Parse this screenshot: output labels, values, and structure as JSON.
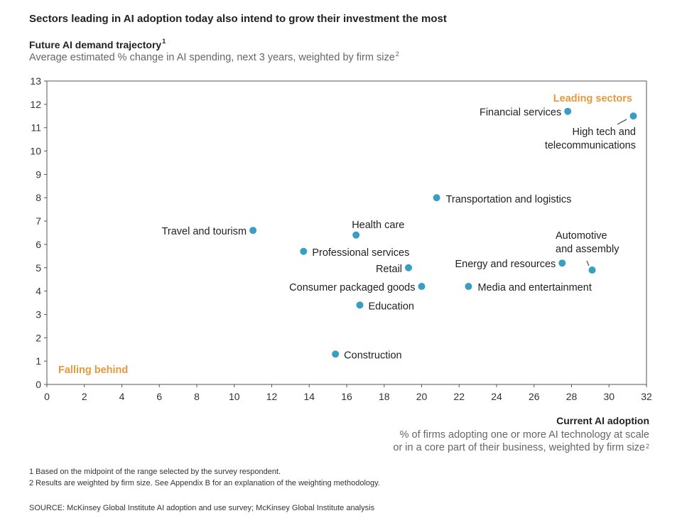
{
  "title": "Sectors leading in AI adoption today also intend to grow their investment the most",
  "y_axis": {
    "title": "Future AI demand trajectory",
    "title_sup": "1",
    "subtitle": "Average estimated % change in AI spending, next 3 years, weighted by firm size",
    "subtitle_sup": "2"
  },
  "x_axis": {
    "title": "Current AI adoption",
    "subtitle_line1": "% of firms adopting one or more AI technology at scale",
    "subtitle_line2": "or in a core part of their business, weighted by firm size",
    "subtitle_sup": "2"
  },
  "footnotes": {
    "note1": "1  Based on the midpoint of the range selected by the survey respondent.",
    "note2": "2  Results are weighted by firm size. See Appendix B for an explanation of the weighting methodology.",
    "source": "SOURCE:  McKinsey Global Institute AI adoption and use survey; McKinsey Global Institute analysis"
  },
  "chart_data": {
    "type": "scatter",
    "title": "Sectors leading in AI adoption today also intend to grow their investment the most",
    "xlabel": "Current AI adoption",
    "ylabel": "Future AI demand trajectory",
    "xlim": [
      0,
      32
    ],
    "ylim": [
      0,
      13
    ],
    "x_ticks": [
      0,
      2,
      4,
      6,
      8,
      10,
      12,
      14,
      16,
      18,
      20,
      22,
      24,
      26,
      28,
      30,
      32
    ],
    "y_ticks": [
      0,
      1,
      2,
      3,
      4,
      5,
      6,
      7,
      8,
      9,
      10,
      11,
      12,
      13
    ],
    "grid": false,
    "marker_color": "#3a9ec2",
    "annotation_color": "#e39a3b",
    "annotations": [
      {
        "text": "Leading sectors",
        "position": "top-right"
      },
      {
        "text": "Falling behind",
        "position": "bottom-left"
      }
    ],
    "points": [
      {
        "name": "Financial services",
        "x": 27.8,
        "y": 11.7
      },
      {
        "name": "High tech and telecommunications",
        "x": 31.3,
        "y": 11.5
      },
      {
        "name": "Transportation and logistics",
        "x": 20.8,
        "y": 8.0
      },
      {
        "name": "Travel and tourism",
        "x": 11.0,
        "y": 6.6
      },
      {
        "name": "Health care",
        "x": 16.5,
        "y": 6.4
      },
      {
        "name": "Professional services",
        "x": 13.7,
        "y": 5.7
      },
      {
        "name": "Automotive and assembly",
        "x": 29.1,
        "y": 4.9
      },
      {
        "name": "Energy and resources",
        "x": 27.5,
        "y": 5.2
      },
      {
        "name": "Retail",
        "x": 19.3,
        "y": 5.0
      },
      {
        "name": "Consumer packaged goods",
        "x": 20.0,
        "y": 4.2
      },
      {
        "name": "Media and entertainment",
        "x": 22.5,
        "y": 4.2
      },
      {
        "name": "Education",
        "x": 16.7,
        "y": 3.4
      },
      {
        "name": "Construction",
        "x": 15.4,
        "y": 1.3
      }
    ]
  }
}
